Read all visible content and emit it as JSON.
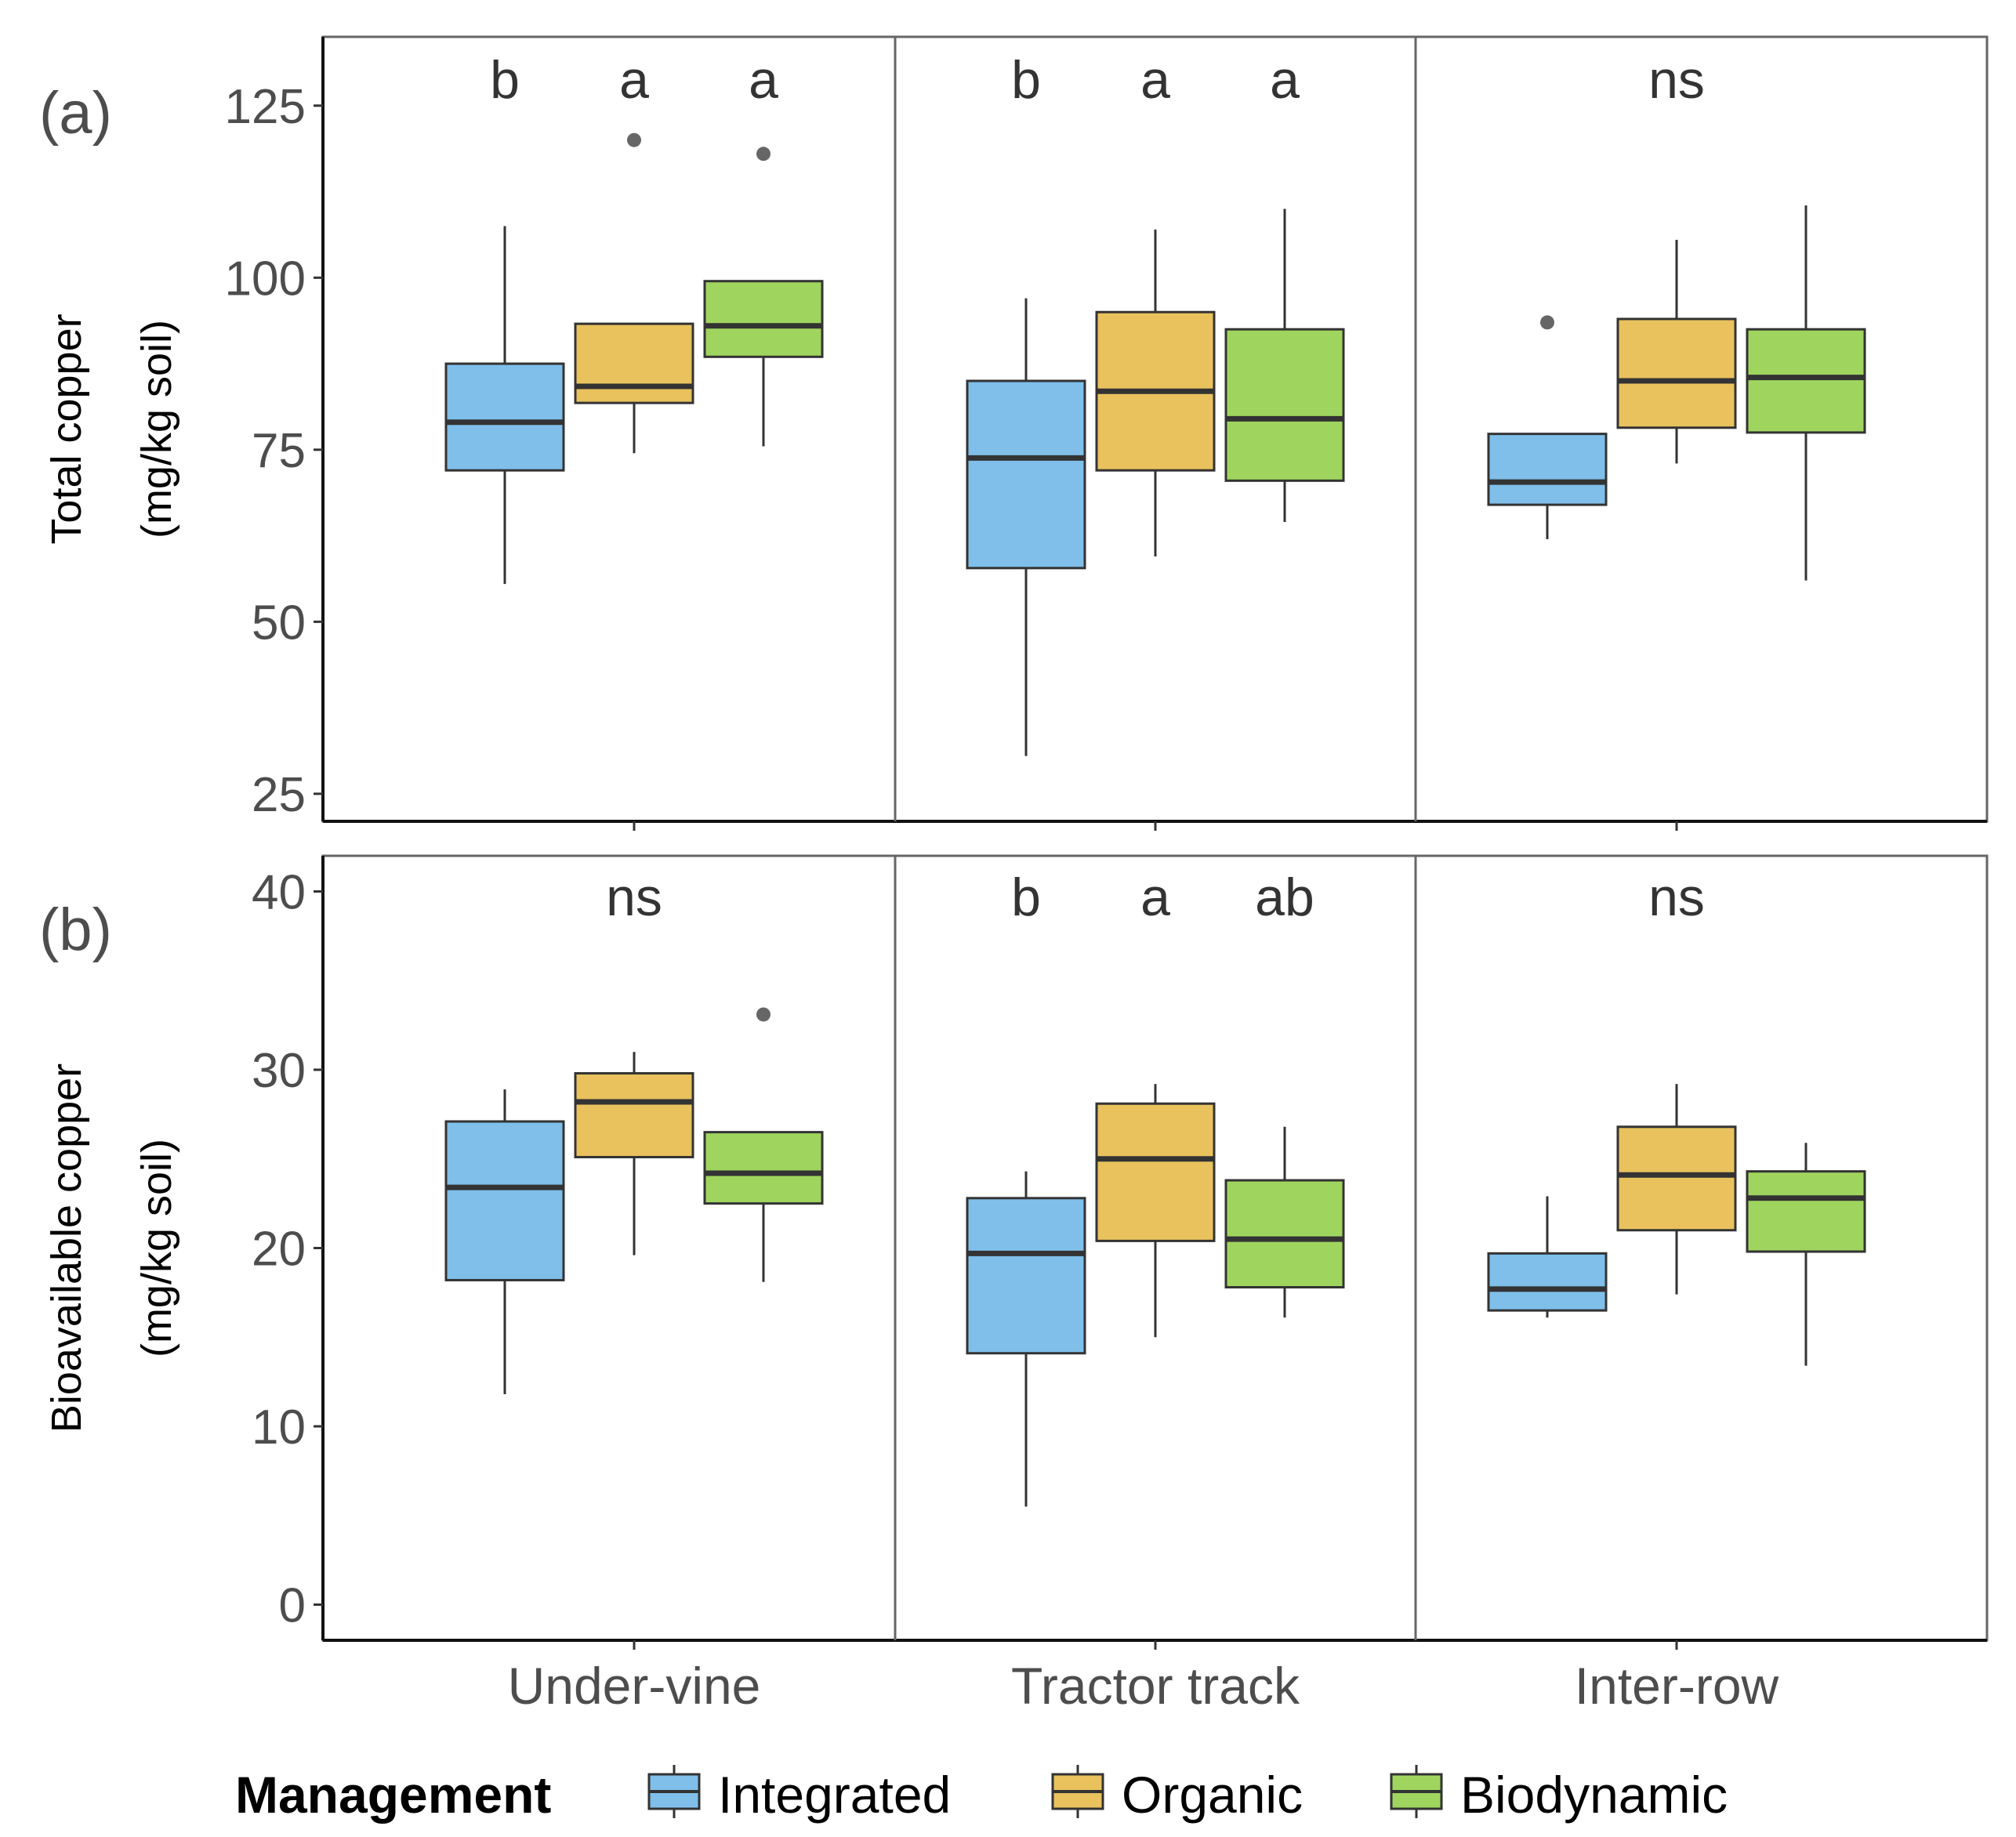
{
  "chart_data": {
    "type": "boxplot",
    "legend": {
      "title": "Management",
      "position": "bottom",
      "items": [
        {
          "name": "Integrated",
          "color": "#7fbfea"
        },
        {
          "name": "Organic",
          "color": "#e9c25e"
        },
        {
          "name": "Biodynamic",
          "color": "#9fd55e"
        }
      ]
    },
    "facets": [
      "Under-vine",
      "Tractor track",
      "Inter-row"
    ],
    "panels": [
      {
        "panel_label": "(a)",
        "ylabel_line1": "Total copper",
        "ylabel_line2": "(mg/kg soil)",
        "ylim": [
          21,
          135
        ],
        "yticks": [
          25,
          50,
          75,
          100,
          125
        ],
        "ytick_labels": [
          "25",
          "50",
          "75",
          "100",
          "125"
        ],
        "significance": [
          {
            "type": "letters",
            "letters": [
              "b",
              "a",
              "a"
            ]
          },
          {
            "type": "letters",
            "letters": [
              "b",
              "a",
              "a"
            ]
          },
          {
            "type": "single",
            "text": "ns"
          }
        ],
        "boxes": [
          [
            {
              "group": "Integrated",
              "lower_whisker": 55.5,
              "q1": 72,
              "median": 79,
              "q3": 87.5,
              "upper_whisker": 107.5,
              "outliers": []
            },
            {
              "group": "Organic",
              "lower_whisker": 74.5,
              "q1": 81.8,
              "median": 84.2,
              "q3": 93.3,
              "upper_whisker": 93.3,
              "outliers": [
                120
              ]
            },
            {
              "group": "Biodynamic",
              "lower_whisker": 75.5,
              "q1": 88.5,
              "median": 93,
              "q3": 99.5,
              "upper_whisker": 99.5,
              "outliers": [
                118
              ]
            }
          ],
          [
            {
              "group": "Integrated",
              "lower_whisker": 30.5,
              "q1": 57.8,
              "median": 73.8,
              "q3": 85,
              "upper_whisker": 97,
              "outliers": []
            },
            {
              "group": "Organic",
              "lower_whisker": 59.5,
              "q1": 72,
              "median": 83.5,
              "q3": 95,
              "upper_whisker": 107,
              "outliers": []
            },
            {
              "group": "Biodynamic",
              "lower_whisker": 64.5,
              "q1": 70.5,
              "median": 79.5,
              "q3": 92.5,
              "upper_whisker": 110,
              "outliers": []
            }
          ],
          [
            {
              "group": "Integrated",
              "lower_whisker": 62,
              "q1": 67,
              "median": 70.3,
              "q3": 77.3,
              "upper_whisker": 77.3,
              "outliers": [
                93.5
              ]
            },
            {
              "group": "Organic",
              "lower_whisker": 73,
              "q1": 78.2,
              "median": 85,
              "q3": 94,
              "upper_whisker": 105.5,
              "outliers": []
            },
            {
              "group": "Biodynamic",
              "lower_whisker": 56,
              "q1": 77.5,
              "median": 85.5,
              "q3": 92.5,
              "upper_whisker": 110.5,
              "outliers": []
            }
          ]
        ]
      },
      {
        "panel_label": "(b)",
        "ylabel_line1": "Bioavailable copper",
        "ylabel_line2": "(mg/kg soil)",
        "ylim": [
          -2,
          42
        ],
        "yticks": [
          0,
          10,
          20,
          30,
          40
        ],
        "ytick_labels": [
          "0",
          "10",
          "20",
          "30",
          "40"
        ],
        "significance": [
          {
            "type": "single",
            "text": "ns"
          },
          {
            "type": "letters",
            "letters": [
              "b",
              "a",
              "ab"
            ]
          },
          {
            "type": "single",
            "text": "ns"
          }
        ],
        "boxes": [
          [
            {
              "group": "Integrated",
              "lower_whisker": 11.8,
              "q1": 18.2,
              "median": 23.4,
              "q3": 27.1,
              "upper_whisker": 28.9,
              "outliers": []
            },
            {
              "group": "Organic",
              "lower_whisker": 19.6,
              "q1": 25.1,
              "median": 28.2,
              "q3": 29.8,
              "upper_whisker": 31,
              "outliers": []
            },
            {
              "group": "Biodynamic",
              "lower_whisker": 18.1,
              "q1": 22.5,
              "median": 24.2,
              "q3": 26.5,
              "upper_whisker": 26.5,
              "outliers": [
                33.1
              ]
            }
          ],
          [
            {
              "group": "Integrated",
              "lower_whisker": 5.5,
              "q1": 14.1,
              "median": 19.7,
              "q3": 22.8,
              "upper_whisker": 24.3,
              "outliers": []
            },
            {
              "group": "Organic",
              "lower_whisker": 15,
              "q1": 20.4,
              "median": 25,
              "q3": 28.1,
              "upper_whisker": 29.2,
              "outliers": []
            },
            {
              "group": "Biodynamic",
              "lower_whisker": 16.1,
              "q1": 17.8,
              "median": 20.5,
              "q3": 23.8,
              "upper_whisker": 26.8,
              "outliers": []
            }
          ],
          [
            {
              "group": "Integrated",
              "lower_whisker": 16.1,
              "q1": 16.5,
              "median": 17.7,
              "q3": 19.7,
              "upper_whisker": 22.9,
              "outliers": []
            },
            {
              "group": "Organic",
              "lower_whisker": 17.4,
              "q1": 21,
              "median": 24.1,
              "q3": 26.8,
              "upper_whisker": 29.2,
              "outliers": []
            },
            {
              "group": "Biodynamic",
              "lower_whisker": 13.4,
              "q1": 19.8,
              "median": 22.8,
              "q3": 24.3,
              "upper_whisker": 25.9,
              "outliers": []
            }
          ]
        ]
      }
    ]
  }
}
